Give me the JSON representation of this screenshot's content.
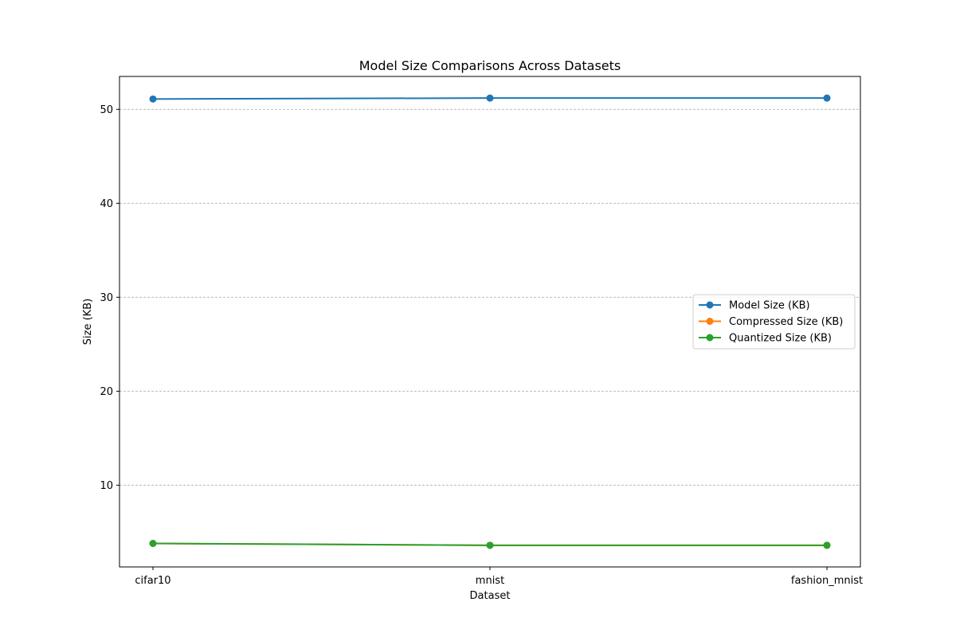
{
  "chart_data": {
    "type": "line",
    "title": "Model Size Comparisons Across Datasets",
    "xlabel": "Dataset",
    "ylabel": "Size (KB)",
    "categories": [
      "cifar10",
      "mnist",
      "fashion_mnist"
    ],
    "ylim": [
      1.3,
      53.5
    ],
    "yticks": [
      10,
      20,
      30,
      40,
      50
    ],
    "grid": "y-axis dashed",
    "legend_position": "center-right",
    "series": [
      {
        "name": "Model Size (KB)",
        "color": "#1f77b4",
        "marker": "circle",
        "values": [
          51.1,
          51.2,
          51.2
        ]
      },
      {
        "name": "Compressed Size (KB)",
        "color": "#ff7f0e",
        "marker": "circle",
        "values": [
          3.8,
          3.6,
          3.6
        ]
      },
      {
        "name": "Quantized Size (KB)",
        "color": "#2ca02c",
        "marker": "circle",
        "values": [
          3.8,
          3.6,
          3.6
        ]
      }
    ]
  }
}
